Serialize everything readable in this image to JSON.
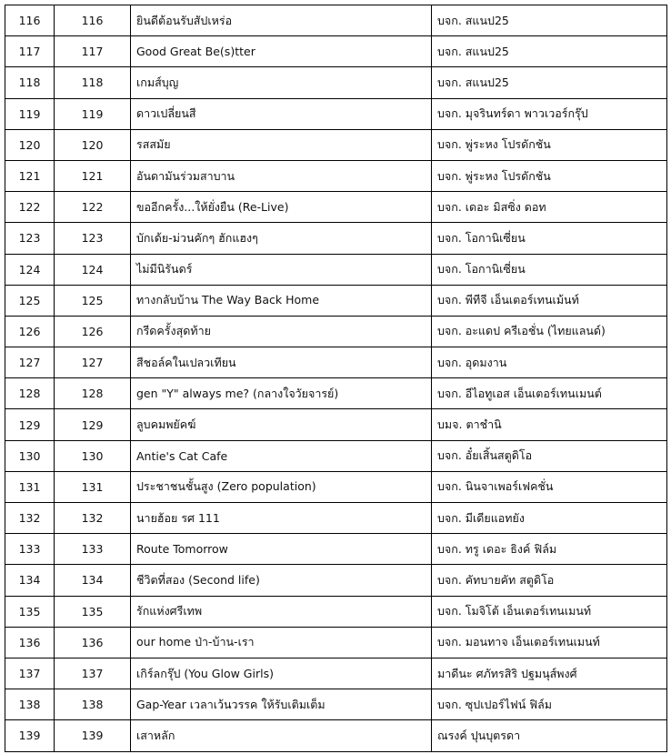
{
  "table": {
    "rows": [
      [
        "116",
        "116",
        "ยินดีต้อนรับสัปเหร่อ",
        "บจก. สแนป25"
      ],
      [
        "117",
        "117",
        "Good Great Be(s)tter",
        "บจก. สแนป25"
      ],
      [
        "118",
        "118",
        "เกมส์บุญ",
        "บจก. สแนป25"
      ],
      [
        "119",
        "119",
        "ดาวเปลี่ยนสี",
        "บจก. มุจรินทร์ดา พาวเวอร์กรุ๊ป"
      ],
      [
        "120",
        "120",
        "รสสมัย",
        "บจก. พู่ระหง โปรดักชัน"
      ],
      [
        "121",
        "121",
        "อันดามันร่วมสาบาน",
        "บจก. พู่ระหง โปรดักชัน"
      ],
      [
        "122",
        "122",
        "ขออีกครั้ง...ให้ยั่งยืน (Re-Live)",
        "บจก. เดอะ มิสซิ่ง ดอท"
      ],
      [
        "123",
        "123",
        "บักเด้ย-ม่วนคักๆ ฮักแฮงๆ",
        "บจก. โอกานิเซี่ยน"
      ],
      [
        "124",
        "124",
        "ไม่มีนิรันดร์",
        "บจก. โอกานิเซี่ยน"
      ],
      [
        "125",
        "125",
        "ทางกลับบ้าน The Way Back Home",
        "บจก. พีทีจี เอ็นเตอร์เทนเม้นท์"
      ],
      [
        "126",
        "126",
        "กรีดครั้งสุดท้าย",
        "บจก. อะแดป ครีเอชั่น (ไทยแลนด์)"
      ],
      [
        "127",
        "127",
        "สีชอล์คในเปลวเทียน",
        "บจก. อุดมงาน"
      ],
      [
        "128",
        "128",
        "gen \"Y\" always me? (กลางใจวัยจารย์)",
        "บจก. อีไอทูเอส เอ็นเตอร์เทนเมนต์"
      ],
      [
        "129",
        "129",
        "ลูบคมพยัคฆ์",
        "บมจ. ตาชำนิ"
      ],
      [
        "130",
        "130",
        "Antie's Cat Cafe",
        "บจก. อั๋ยเสิ้นสตูดิโอ"
      ],
      [
        "131",
        "131",
        "ประชาชนชั้นสูง (Zero population)",
        "บจก. นินจาเพอร์เฟคชั่น"
      ],
      [
        "132",
        "132",
        "นายฮ้อย รศ 111",
        "บจก. มีเดียแอทยัง"
      ],
      [
        "133",
        "133",
        "Route Tomorrow",
        "บจก. ทรู เดอะ ธิงค์ ฟิล์ม"
      ],
      [
        "134",
        "134",
        "ชีวิตที่สอง (Second life)",
        "บจก. คัทบายคัท สตูดิโอ"
      ],
      [
        "135",
        "135",
        "รักแห่งศรีเทพ",
        "บจก. โมจิโต้ เอ็นเตอร์เทนเมนท์"
      ],
      [
        "136",
        "136",
        "our home ป่า-บ้าน-เรา",
        "บจก. มอนทาจ เอ็นเตอร์เทนเมนท์"
      ],
      [
        "137",
        "137",
        "เกิร์ลกรุ๊ป (You Glow Girls)",
        "มาดีนะ ศภัทรสิริ ปฐมนุส์พงศ์"
      ],
      [
        "138",
        "138",
        "Gap-Year เวลาเว้นวรรค ให้รับเติมเต็ม",
        "บจก. ซุปเปอร์ไฟน์ ฟิล์ม"
      ],
      [
        "139",
        "139",
        "เสาหลัก",
        "ณรงค์ ปุนบุตรดา"
      ]
    ]
  }
}
